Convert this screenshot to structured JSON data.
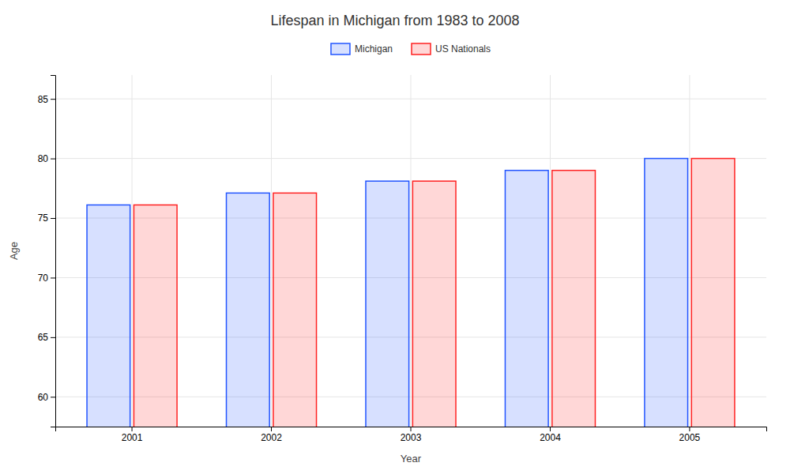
{
  "chart_data": {
    "type": "bar",
    "title": "Lifespan in Michigan from 1983 to 2008",
    "xlabel": "Year",
    "ylabel": "Age",
    "categories": [
      "2001",
      "2002",
      "2003",
      "2004",
      "2005"
    ],
    "series": [
      {
        "name": "Michigan",
        "color": "#2255ff",
        "values": [
          76.1,
          77.1,
          78.1,
          79.0,
          80.0
        ]
      },
      {
        "name": "US Nationals",
        "color": "#ff2222",
        "values": [
          76.1,
          77.1,
          78.1,
          79.0,
          80.0
        ]
      }
    ],
    "ylim": [
      57.5,
      87
    ],
    "yticks": [
      60,
      65,
      70,
      75,
      80,
      85
    ],
    "grid": true,
    "legend": "upper center"
  }
}
